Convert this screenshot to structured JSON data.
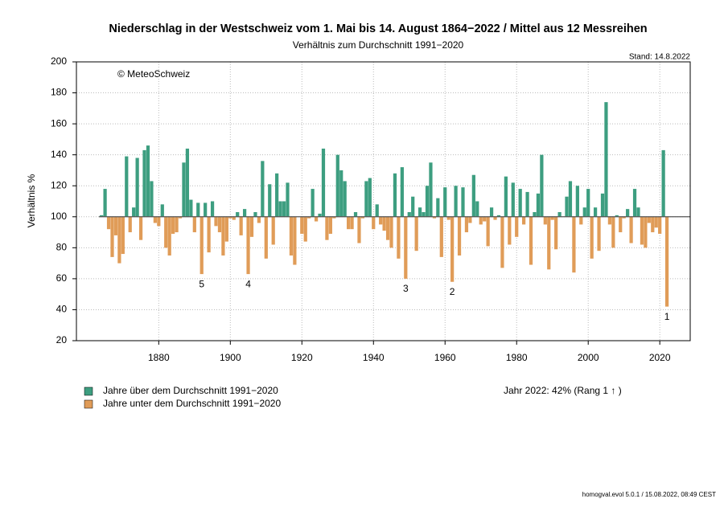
{
  "chart_data": {
    "type": "bar",
    "title": "Niederschlag in der Westschweiz vom 1. Mai bis 14. August 1864−2022 / Mittel aus 12 Messreihen",
    "subtitle": "Verhältnis zum Durchschnitt 1991−2020",
    "stand": "Stand: 14.8.2022",
    "copyright": "© MeteoSchweiz",
    "y_label": "Verhältnis %",
    "summary": "Jahr 2022: 42% (Rang 1 ↑ )",
    "footer": "homogval.evol 5.0.1 / 15.08.2022, 08:49 CEST",
    "baseline": 100,
    "grid": true,
    "x": [
      1864,
      1865,
      1866,
      1867,
      1868,
      1869,
      1870,
      1871,
      1872,
      1873,
      1874,
      1875,
      1876,
      1877,
      1878,
      1879,
      1880,
      1881,
      1882,
      1883,
      1884,
      1885,
      1886,
      1887,
      1888,
      1889,
      1890,
      1891,
      1892,
      1893,
      1894,
      1895,
      1896,
      1897,
      1898,
      1899,
      1900,
      1901,
      1902,
      1903,
      1904,
      1905,
      1906,
      1907,
      1908,
      1909,
      1910,
      1911,
      1912,
      1913,
      1914,
      1915,
      1916,
      1917,
      1918,
      1919,
      1920,
      1921,
      1922,
      1923,
      1924,
      1925,
      1926,
      1927,
      1928,
      1929,
      1930,
      1931,
      1932,
      1933,
      1934,
      1935,
      1936,
      1937,
      1938,
      1939,
      1940,
      1941,
      1942,
      1943,
      1944,
      1945,
      1946,
      1947,
      1948,
      1949,
      1950,
      1951,
      1952,
      1953,
      1954,
      1955,
      1956,
      1957,
      1958,
      1959,
      1960,
      1961,
      1962,
      1963,
      1964,
      1965,
      1966,
      1967,
      1968,
      1969,
      1970,
      1971,
      1972,
      1973,
      1974,
      1975,
      1976,
      1977,
      1978,
      1979,
      1980,
      1981,
      1982,
      1983,
      1984,
      1985,
      1986,
      1987,
      1988,
      1989,
      1990,
      1991,
      1992,
      1993,
      1994,
      1995,
      1996,
      1997,
      1998,
      1999,
      2000,
      2001,
      2002,
      2003,
      2004,
      2005,
      2006,
      2007,
      2008,
      2009,
      2010,
      2011,
      2012,
      2013,
      2014,
      2015,
      2016,
      2017,
      2018,
      2019,
      2020,
      2021,
      2022
    ],
    "values": [
      101,
      118,
      92,
      74,
      88,
      70,
      76,
      139,
      90,
      106,
      138,
      85,
      143,
      146,
      123,
      96,
      94,
      108,
      80,
      75,
      89,
      90,
      99,
      135,
      144,
      111,
      90,
      109,
      63,
      109,
      77,
      110,
      94,
      90,
      75,
      84,
      99,
      98,
      103,
      88,
      105,
      63,
      87,
      103,
      96,
      136,
      73,
      121,
      82,
      128,
      110,
      110,
      122,
      75,
      69,
      100,
      89,
      84,
      99,
      118,
      97,
      102,
      144,
      85,
      89,
      99,
      140,
      130,
      123,
      92,
      92,
      103,
      83,
      99,
      123,
      125,
      92,
      108,
      95,
      91,
      85,
      80,
      128,
      73,
      132,
      60,
      103,
      113,
      78,
      106,
      103,
      120,
      135,
      99,
      112,
      74,
      119,
      98,
      58,
      120,
      75,
      119,
      90,
      96,
      127,
      110,
      95,
      97,
      81,
      106,
      98,
      101,
      67,
      126,
      82,
      122,
      87,
      118,
      95,
      116,
      69,
      103,
      115,
      140,
      95,
      66,
      98,
      79,
      103,
      100,
      113,
      123,
      64,
      120,
      95,
      106,
      118,
      73,
      106,
      78,
      115,
      174,
      95,
      80,
      101,
      90,
      99,
      105,
      83,
      118,
      106,
      82,
      80,
      96,
      90,
      93,
      89,
      143,
      42
    ],
    "series": [
      {
        "name": "Jahre über dem Durchschnitt 1991−2020",
        "color": "#3d9e80"
      },
      {
        "name": "Jahre unter dem Durchschnitt 1991−2020",
        "color": "#e09c58"
      }
    ],
    "rank_labels": [
      {
        "year": 1892,
        "label": "5"
      },
      {
        "year": 1905,
        "label": "4"
      },
      {
        "year": 1949,
        "label": "3"
      },
      {
        "year": 1962,
        "label": "2"
      },
      {
        "year": 2022,
        "label": "1"
      }
    ],
    "xlim": [
      1857,
      2028.5
    ],
    "ylim": [
      20,
      200
    ],
    "xticks": [
      1880,
      1900,
      1920,
      1940,
      1960,
      1980,
      2000,
      2020
    ],
    "yticks": [
      20,
      40,
      60,
      80,
      100,
      120,
      140,
      160,
      180,
      200
    ]
  }
}
